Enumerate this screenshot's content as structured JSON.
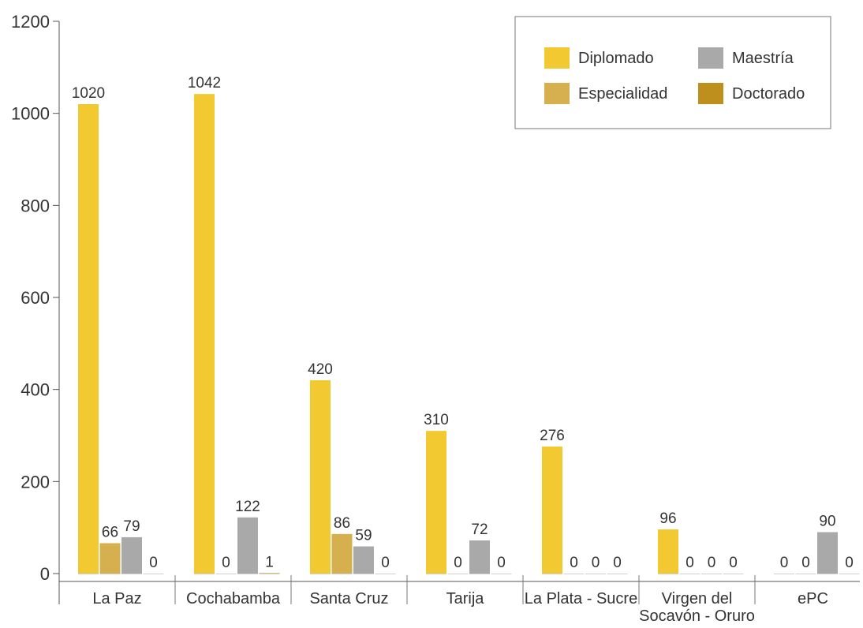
{
  "chart_data": {
    "type": "bar",
    "title": "",
    "xlabel": "",
    "ylabel": "",
    "ylim": [
      0,
      1200
    ],
    "yticks": [
      0,
      200,
      400,
      600,
      800,
      1000,
      1200
    ],
    "grid": false,
    "legend_position": "top-right",
    "categories": [
      [
        "La Paz"
      ],
      [
        "Cochabamba"
      ],
      [
        "Santa Cruz"
      ],
      [
        "Tarija"
      ],
      [
        "La Plata - Sucre"
      ],
      [
        "Virgen del",
        "Socavón - Oruro"
      ],
      [
        "ePC"
      ]
    ],
    "series": [
      {
        "name": "Diplomado",
        "color": "#f2c931",
        "values": [
          1020,
          1042,
          420,
          310,
          276,
          96,
          0
        ]
      },
      {
        "name": "Especialidad",
        "color": "#d6b04f",
        "values": [
          66,
          0,
          86,
          0,
          0,
          0,
          0
        ]
      },
      {
        "name": "Maestría",
        "color": "#a9a9a9",
        "values": [
          79,
          122,
          59,
          72,
          0,
          0,
          90
        ]
      },
      {
        "name": "Doctorado",
        "color": "#bf8f1e",
        "values": [
          0,
          1,
          0,
          0,
          0,
          0,
          0
        ]
      }
    ],
    "legend_order": [
      "Diplomado",
      "Maestría",
      "Especialidad",
      "Doctorado"
    ]
  }
}
